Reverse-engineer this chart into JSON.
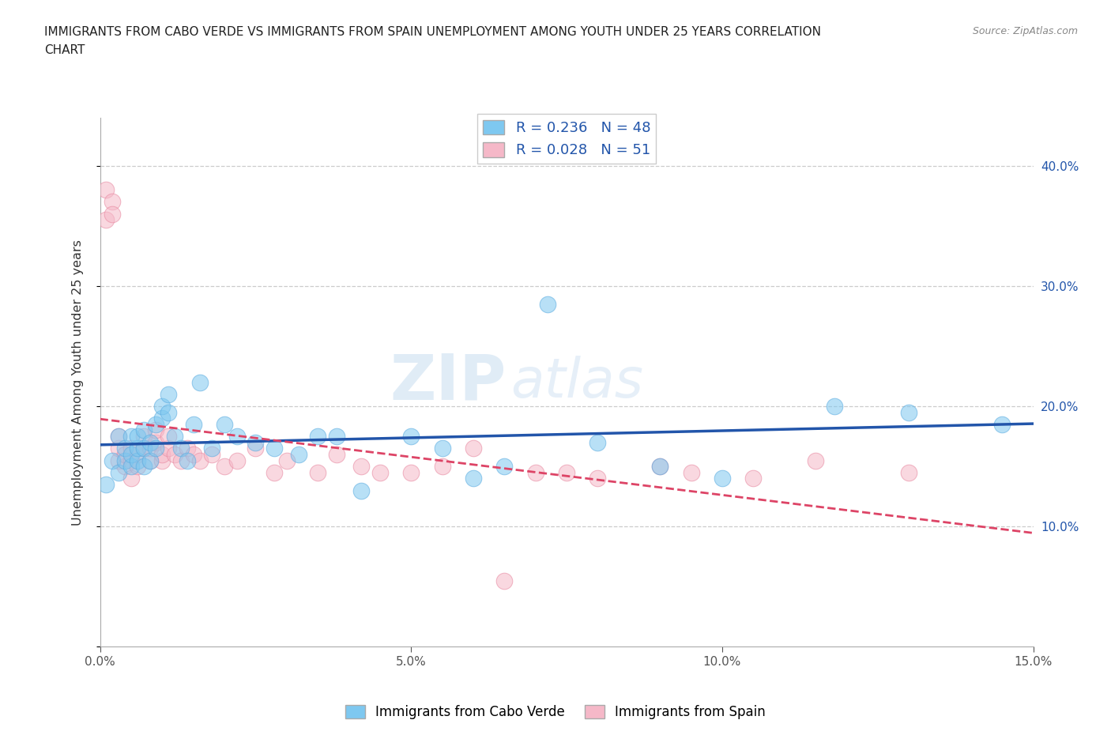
{
  "title_line1": "IMMIGRANTS FROM CABO VERDE VS IMMIGRANTS FROM SPAIN UNEMPLOYMENT AMONG YOUTH UNDER 25 YEARS CORRELATION",
  "title_line2": "CHART",
  "source_text": "Source: ZipAtlas.com",
  "ylabel": "Unemployment Among Youth under 25 years",
  "xlim": [
    0.0,
    0.15
  ],
  "ylim": [
    0.0,
    0.44
  ],
  "xticks": [
    0.0,
    0.05,
    0.1,
    0.15
  ],
  "xticklabels": [
    "0.0%",
    "5.0%",
    "10.0%",
    "15.0%"
  ],
  "yticks": [
    0.0,
    0.1,
    0.2,
    0.3,
    0.4
  ],
  "right_yticks": [
    0.1,
    0.2,
    0.3,
    0.4
  ],
  "right_yticklabels": [
    "10.0%",
    "20.0%",
    "30.0%",
    "40.0%"
  ],
  "cabo_verde_color": "#7ec8f0",
  "cabo_verde_edge_color": "#5aabe0",
  "spain_color": "#f5b8c8",
  "spain_edge_color": "#e888a0",
  "cabo_verde_R": 0.236,
  "cabo_verde_N": 48,
  "spain_R": 0.028,
  "spain_N": 51,
  "cabo_verde_trend_color": "#2255aa",
  "spain_trend_color": "#dd4466",
  "cabo_verde_x": [
    0.001,
    0.002,
    0.003,
    0.003,
    0.004,
    0.004,
    0.005,
    0.005,
    0.005,
    0.006,
    0.006,
    0.006,
    0.007,
    0.007,
    0.007,
    0.008,
    0.008,
    0.009,
    0.009,
    0.01,
    0.01,
    0.011,
    0.011,
    0.012,
    0.013,
    0.014,
    0.015,
    0.016,
    0.018,
    0.02,
    0.022,
    0.025,
    0.028,
    0.032,
    0.035,
    0.038,
    0.042,
    0.05,
    0.055,
    0.06,
    0.065,
    0.072,
    0.08,
    0.09,
    0.1,
    0.118,
    0.13,
    0.145
  ],
  "cabo_verde_y": [
    0.135,
    0.155,
    0.175,
    0.145,
    0.155,
    0.165,
    0.15,
    0.16,
    0.175,
    0.155,
    0.165,
    0.175,
    0.15,
    0.165,
    0.18,
    0.155,
    0.17,
    0.185,
    0.165,
    0.19,
    0.2,
    0.195,
    0.21,
    0.175,
    0.165,
    0.155,
    0.185,
    0.22,
    0.165,
    0.185,
    0.175,
    0.17,
    0.165,
    0.16,
    0.175,
    0.175,
    0.13,
    0.175,
    0.165,
    0.14,
    0.15,
    0.285,
    0.17,
    0.15,
    0.14,
    0.2,
    0.195,
    0.185
  ],
  "spain_x": [
    0.001,
    0.001,
    0.002,
    0.002,
    0.003,
    0.003,
    0.003,
    0.004,
    0.004,
    0.005,
    0.005,
    0.005,
    0.006,
    0.006,
    0.007,
    0.007,
    0.008,
    0.008,
    0.009,
    0.009,
    0.01,
    0.01,
    0.011,
    0.011,
    0.012,
    0.013,
    0.014,
    0.015,
    0.016,
    0.018,
    0.02,
    0.022,
    0.025,
    0.028,
    0.03,
    0.035,
    0.038,
    0.042,
    0.045,
    0.05,
    0.055,
    0.06,
    0.065,
    0.07,
    0.075,
    0.08,
    0.09,
    0.095,
    0.105,
    0.115,
    0.13
  ],
  "spain_y": [
    0.38,
    0.355,
    0.37,
    0.36,
    0.155,
    0.165,
    0.175,
    0.15,
    0.16,
    0.14,
    0.155,
    0.165,
    0.15,
    0.16,
    0.165,
    0.175,
    0.155,
    0.165,
    0.17,
    0.18,
    0.155,
    0.16,
    0.165,
    0.175,
    0.16,
    0.155,
    0.165,
    0.16,
    0.155,
    0.16,
    0.15,
    0.155,
    0.165,
    0.145,
    0.155,
    0.145,
    0.16,
    0.15,
    0.145,
    0.145,
    0.15,
    0.165,
    0.055,
    0.145,
    0.145,
    0.14,
    0.15,
    0.145,
    0.14,
    0.155,
    0.145
  ]
}
